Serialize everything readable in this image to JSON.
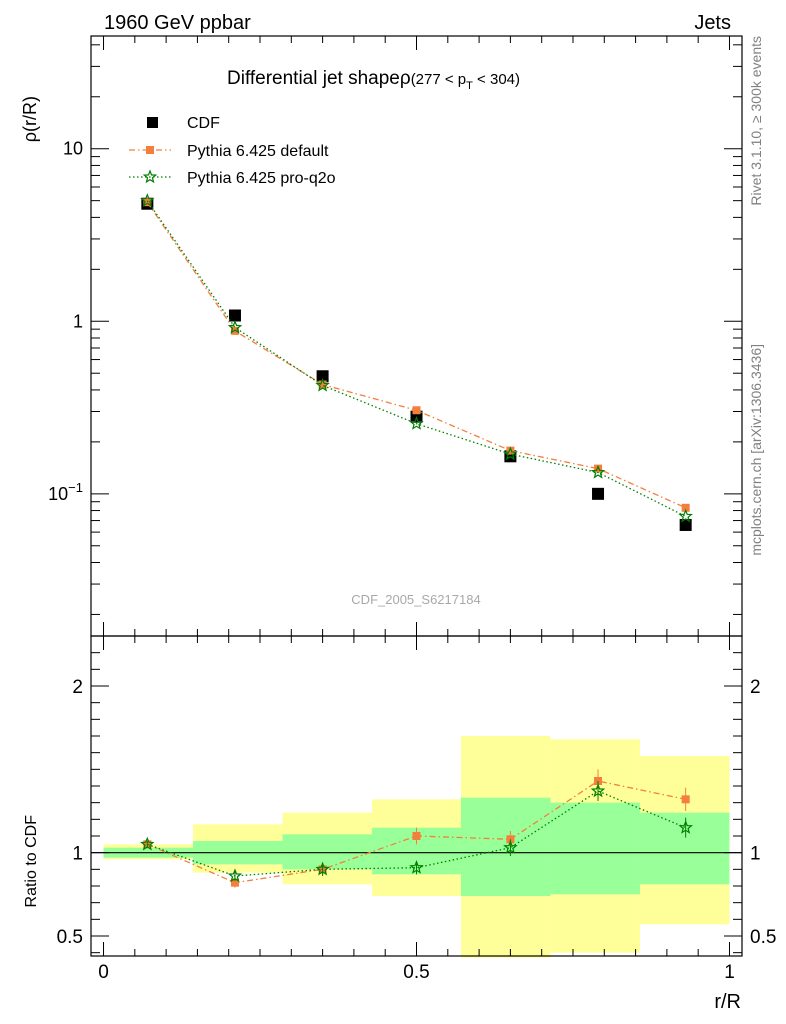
{
  "header": {
    "left": "1960 GeV ppbar",
    "right": "Jets"
  },
  "side_labels": {
    "rivet": "Rivet 3.1.10, ≥ 300k events",
    "mcplots": "mcplots.cern.ch [arXiv:1306.3436]"
  },
  "chart_data": [
    {
      "type": "scatter",
      "panel": "main",
      "title": {
        "main": "Differential jet shape",
        "rho": "ρ",
        "range_open": "(277 < p",
        "range_sub": "T",
        "range_close": " < 304)"
      },
      "ylabel": "ρ(r/R)",
      "yscale": "log",
      "xlim": [
        -0.02,
        1.02
      ],
      "ylim": [
        0.015,
        45
      ],
      "yticks": [
        {
          "value": 10,
          "label": "10"
        },
        {
          "value": 1,
          "label": "1"
        },
        {
          "value": 0.1,
          "label": "10",
          "sup": "−1"
        }
      ],
      "watermark": "CDF_2005_S6217184",
      "legend_position": "top-left",
      "x": [
        0.07,
        0.21,
        0.35,
        0.5,
        0.65,
        0.79,
        0.93
      ],
      "series": [
        {
          "name": "CDF",
          "color": "#000000",
          "marker": "square",
          "values": [
            4.8,
            1.08,
            0.48,
            0.28,
            0.165,
            0.1,
            0.066
          ]
        },
        {
          "name": "Pythia 6.425 default",
          "color": "#f47f3c",
          "marker": "square-dashdot",
          "values": [
            4.9,
            0.88,
            0.43,
            0.305,
            0.178,
            0.14,
            0.083
          ]
        },
        {
          "name": "Pythia 6.425 pro-q2o",
          "color": "#007f00",
          "marker": "star-dotted",
          "values": [
            5.0,
            0.92,
            0.425,
            0.255,
            0.17,
            0.133,
            0.074
          ]
        }
      ]
    },
    {
      "type": "scatter",
      "panel": "ratio",
      "ylabel": "Ratio to CDF",
      "xlabel": "r/R",
      "xlim": [
        -0.02,
        1.02
      ],
      "ylim": [
        0.38,
        2.3
      ],
      "reference_line": 1,
      "yticks": [
        {
          "value": 0.5,
          "label": "0.5"
        },
        {
          "value": 1,
          "label": "1"
        },
        {
          "value": 2,
          "label": "2"
        }
      ],
      "xticks": [
        {
          "value": 0,
          "label": "0"
        },
        {
          "value": 0.5,
          "label": "0.5"
        },
        {
          "value": 1,
          "label": "1"
        }
      ],
      "bands": {
        "outer_color": "#ffff99",
        "inner_color": "#99ff99",
        "bins": [
          {
            "x0": 0.0,
            "x1": 0.143,
            "outer": [
              0.96,
              1.05
            ],
            "inner": [
              0.97,
              1.03
            ]
          },
          {
            "x0": 0.143,
            "x1": 0.286,
            "outer": [
              0.88,
              1.17
            ],
            "inner": [
              0.93,
              1.07
            ]
          },
          {
            "x0": 0.286,
            "x1": 0.429,
            "outer": [
              0.81,
              1.24
            ],
            "inner": [
              0.9,
              1.11
            ]
          },
          {
            "x0": 0.429,
            "x1": 0.571,
            "outer": [
              0.74,
              1.32
            ],
            "inner": [
              0.87,
              1.15
            ]
          },
          {
            "x0": 0.571,
            "x1": 0.714,
            "outer": [
              0.37,
              1.7
            ],
            "inner": [
              0.74,
              1.33
            ]
          },
          {
            "x0": 0.714,
            "x1": 0.857,
            "outer": [
              0.4,
              1.68
            ],
            "inner": [
              0.75,
              1.3
            ]
          },
          {
            "x0": 0.857,
            "x1": 1.0,
            "outer": [
              0.57,
              1.58
            ],
            "inner": [
              0.81,
              1.24
            ]
          }
        ]
      },
      "x": [
        0.07,
        0.21,
        0.35,
        0.5,
        0.65,
        0.79,
        0.93
      ],
      "series": [
        {
          "name": "Pythia 6.425 default",
          "color": "#f47f3c",
          "marker": "square-dashdot",
          "values": [
            1.05,
            0.82,
            0.9,
            1.1,
            1.08,
            1.43,
            1.32
          ],
          "errors": [
            0.02,
            0.03,
            0.04,
            0.05,
            0.05,
            0.07,
            0.07
          ]
        },
        {
          "name": "Pythia 6.425 pro-q2o",
          "color": "#007f00",
          "marker": "star-dotted",
          "values": [
            1.05,
            0.86,
            0.9,
            0.91,
            1.03,
            1.37,
            1.15
          ],
          "errors": [
            0.02,
            0.03,
            0.04,
            0.04,
            0.05,
            0.06,
            0.06
          ]
        }
      ]
    }
  ]
}
